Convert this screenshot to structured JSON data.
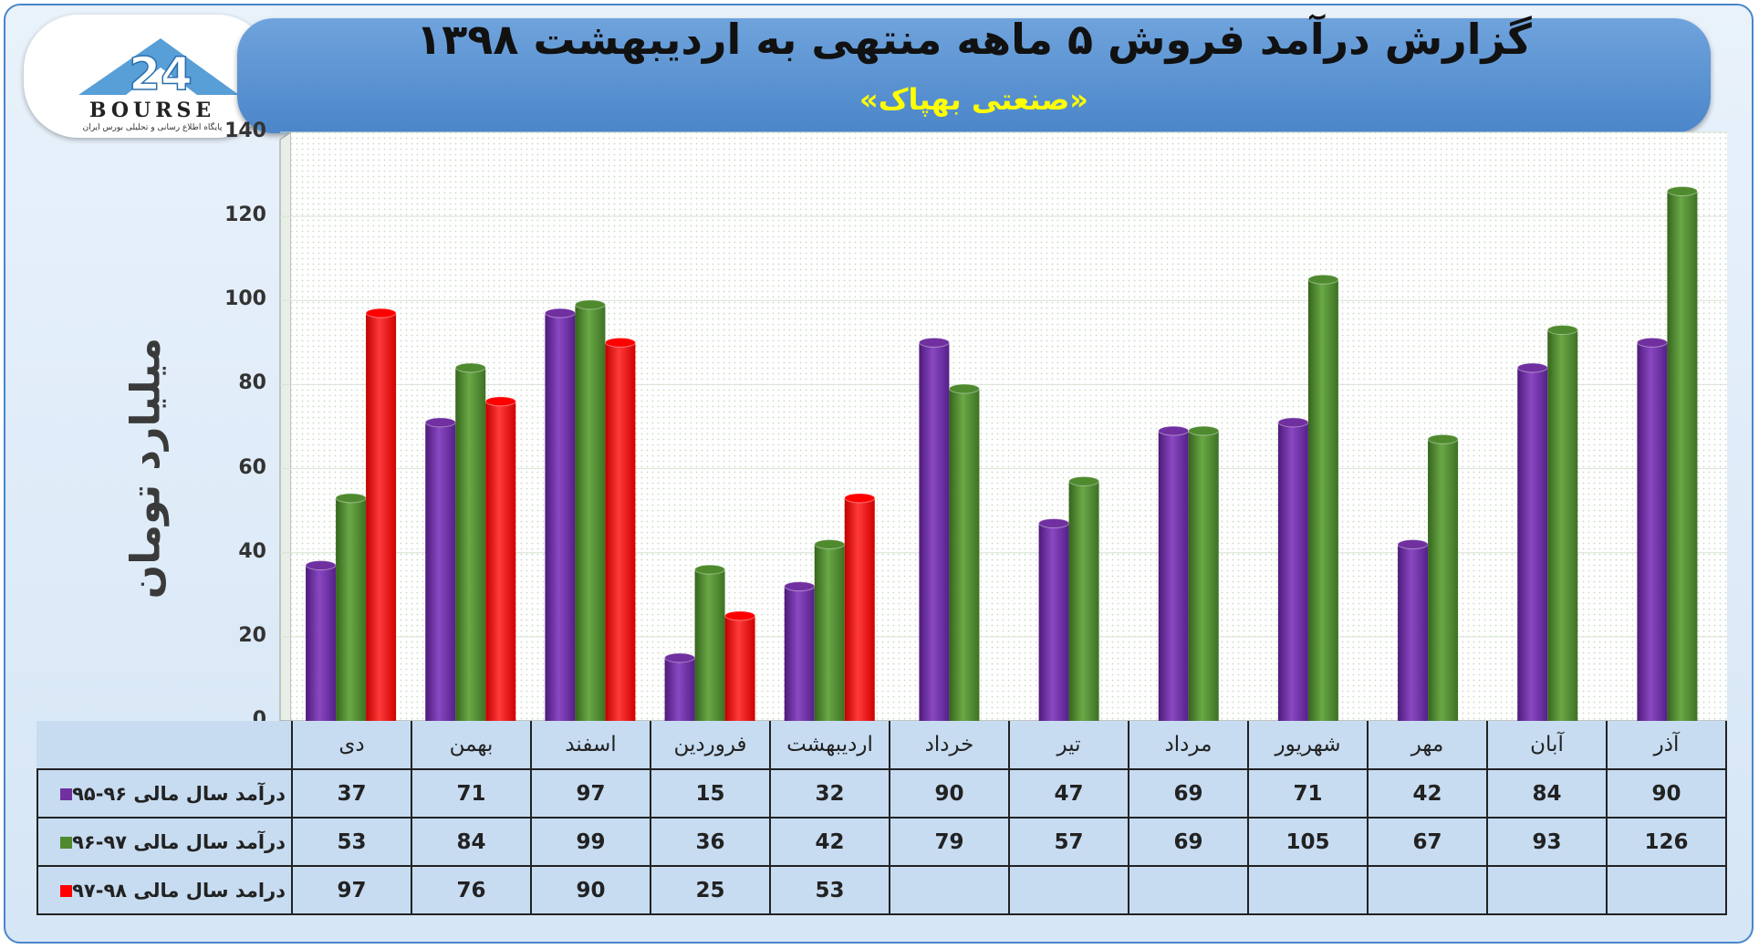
{
  "logo": {
    "name": "BOURSE",
    "caption": "پایگاه اطلاع رسانی و تحلیلی بورس ایران",
    "mark": "24"
  },
  "chart_data": {
    "type": "bar",
    "title": "گزارش درآمد فروش ۵ ماهه منتهی به اردیبهشت ۱۳۹۸",
    "subtitle": "«صنعتی بهپاک»",
    "ylabel": "میلیارد تومان",
    "xlabel": "",
    "ylim": [
      0,
      140
    ],
    "yticks": [
      0,
      20,
      40,
      60,
      80,
      100,
      120,
      140
    ],
    "grid": true,
    "legend": "table",
    "categories": [
      "دی",
      "بهمن",
      "اسفند",
      "فروردین",
      "اردیبهشت",
      "خرداد",
      "تیر",
      "مرداد",
      "شهریور",
      "مهر",
      "آبان",
      "آذر"
    ],
    "series": [
      {
        "name": "درآمد سال مالی ۹۶-۹۵",
        "color": "#7030a0",
        "values": [
          37,
          71,
          97,
          15,
          32,
          90,
          47,
          69,
          71,
          42,
          84,
          90
        ]
      },
      {
        "name": "درآمد سال مالی ۹۷-۹۶",
        "color": "#4f8a2f",
        "values": [
          53,
          84,
          99,
          36,
          42,
          79,
          57,
          69,
          105,
          67,
          93,
          126
        ]
      },
      {
        "name": "درامد سال مالی ۹۸-۹۷",
        "color": "#ff0000",
        "values": [
          97,
          76,
          90,
          25,
          53,
          null,
          null,
          null,
          null,
          null,
          null,
          null
        ]
      }
    ]
  }
}
